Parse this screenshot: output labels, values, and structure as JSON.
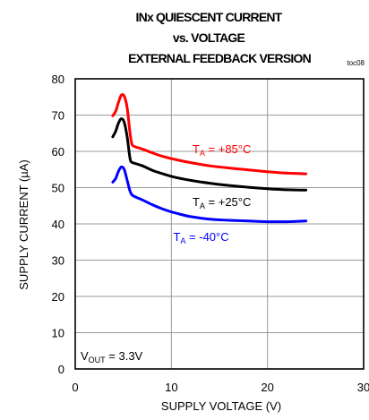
{
  "chart_data": {
    "type": "line",
    "title_lines": [
      "INx QUIESCENT CURRENT",
      "vs. VOLTAGE",
      "EXTERNAL FEEDBACK VERSION"
    ],
    "figure_code": "toc08",
    "xlabel": "SUPPLY VOLTAGE (V)",
    "ylabel": "SUPPLY CURRENT (µA)",
    "xlim": [
      0,
      30
    ],
    "ylim": [
      0,
      80
    ],
    "xticks": [
      0,
      10,
      20,
      30
    ],
    "yticks": [
      0,
      10,
      20,
      30,
      40,
      50,
      60,
      70,
      80
    ],
    "grid": true,
    "condition": {
      "main": "V",
      "sub": "OUT",
      "rest": " = 3.3V"
    },
    "series": [
      {
        "name": "T_A = +85°C",
        "label": {
          "main": "T",
          "sub": "A",
          "rest": " = +85°C"
        },
        "label_at": [
          12.2,
          59.5
        ],
        "color": "#ff0000",
        "points": [
          [
            3.9,
            69.8
          ],
          [
            4.2,
            71.0
          ],
          [
            4.5,
            73.5
          ],
          [
            4.8,
            75.5
          ],
          [
            5.1,
            75.2
          ],
          [
            5.4,
            72.0
          ],
          [
            5.7,
            65.0
          ],
          [
            5.9,
            62.0
          ],
          [
            6.2,
            61.3
          ],
          [
            7,
            60.6
          ],
          [
            8,
            59.6
          ],
          [
            9,
            58.7
          ],
          [
            10,
            58.0
          ],
          [
            11,
            57.4
          ],
          [
            12,
            56.9
          ],
          [
            14,
            56.0
          ],
          [
            16,
            55.4
          ],
          [
            18,
            54.9
          ],
          [
            20,
            54.4
          ],
          [
            22,
            54.0
          ],
          [
            24,
            53.8
          ]
        ]
      },
      {
        "name": "T_A = +25°C",
        "label": {
          "main": "T",
          "sub": "A",
          "rest": " = +25°C"
        },
        "label_at": [
          12.2,
          45.0
        ],
        "color": "#000000",
        "points": [
          [
            3.9,
            64.0
          ],
          [
            4.2,
            65.5
          ],
          [
            4.5,
            67.8
          ],
          [
            4.8,
            69.0
          ],
          [
            5.1,
            68.0
          ],
          [
            5.4,
            64.0
          ],
          [
            5.7,
            58.0
          ],
          [
            5.9,
            57.0
          ],
          [
            6.2,
            56.7
          ],
          [
            7,
            56.0
          ],
          [
            8,
            54.8
          ],
          [
            9,
            53.9
          ],
          [
            10,
            53.1
          ],
          [
            11,
            52.5
          ],
          [
            12,
            52.0
          ],
          [
            14,
            51.2
          ],
          [
            16,
            50.6
          ],
          [
            18,
            50.1
          ],
          [
            20,
            49.7
          ],
          [
            22,
            49.4
          ],
          [
            24,
            49.3
          ]
        ]
      },
      {
        "name": "T_A = -40°C",
        "label": {
          "main": "T",
          "sub": "A",
          "rest": " = -40°C"
        },
        "label_at": [
          10.2,
          35.3
        ],
        "color": "#0000ff",
        "points": [
          [
            3.9,
            51.5
          ],
          [
            4.2,
            52.5
          ],
          [
            4.5,
            54.5
          ],
          [
            4.8,
            55.7
          ],
          [
            5.1,
            55.0
          ],
          [
            5.4,
            52.0
          ],
          [
            5.7,
            49.0
          ],
          [
            5.9,
            48.0
          ],
          [
            6.2,
            47.5
          ],
          [
            7,
            46.6
          ],
          [
            8,
            45.3
          ],
          [
            9,
            44.2
          ],
          [
            10,
            43.3
          ],
          [
            11,
            42.6
          ],
          [
            12,
            42.0
          ],
          [
            14,
            41.3
          ],
          [
            16,
            41.0
          ],
          [
            18,
            40.8
          ],
          [
            20,
            40.6
          ],
          [
            22,
            40.6
          ],
          [
            24,
            40.8
          ]
        ]
      }
    ]
  }
}
